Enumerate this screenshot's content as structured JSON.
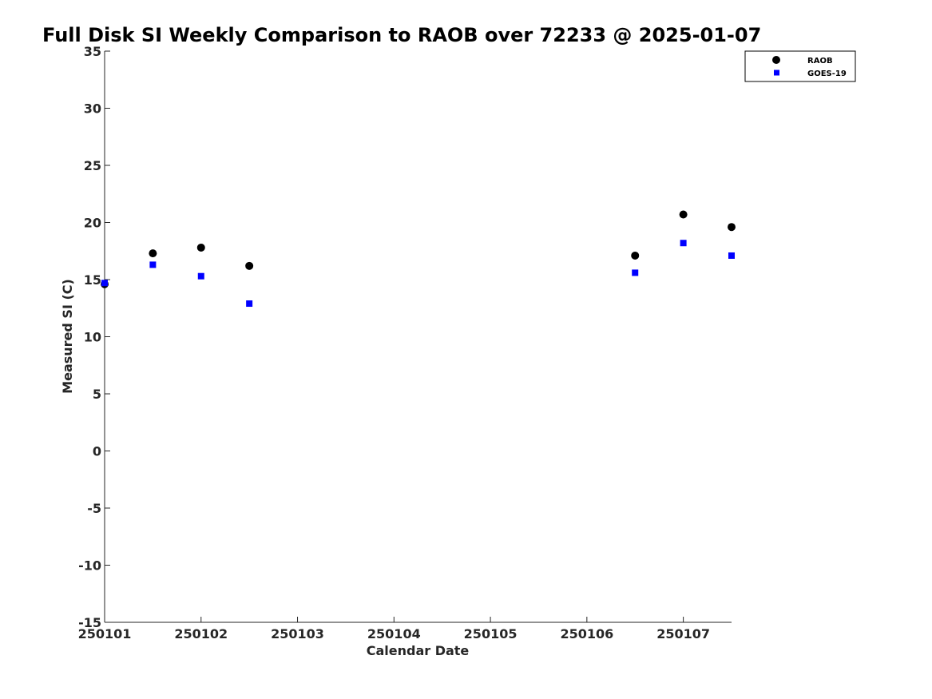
{
  "chart_data": {
    "type": "scatter",
    "title": "Full Disk SI Weekly Comparison to RAOB over 72233 @ 2025-01-07",
    "xlabel": "Calendar Date",
    "ylabel": "Measured SI (C)",
    "x_tick_labels": [
      "250101",
      "250102",
      "250103",
      "250104",
      "250105",
      "250106",
      "250107"
    ],
    "y_tick_labels": [
      "35",
      "30",
      "25",
      "20",
      "15",
      "10",
      "5",
      "0",
      "-5",
      "-10",
      "-15"
    ],
    "x_ticks": [
      1,
      2,
      3,
      4,
      5,
      6,
      7
    ],
    "ylim": [
      -15,
      35
    ],
    "xlim": [
      1,
      7.5
    ],
    "grid": false,
    "legend_position": "top-right",
    "series": [
      {
        "name": "RAOB",
        "marker": "circle",
        "color": "#000000",
        "x": [
          1,
          1.5,
          2,
          2.5,
          6.5,
          7,
          7.5
        ],
        "y": [
          14.6,
          17.3,
          17.8,
          16.2,
          17.1,
          20.7,
          19.6
        ]
      },
      {
        "name": "GOES-19",
        "marker": "square",
        "color": "#0000ff",
        "x": [
          1,
          1.5,
          2,
          2.5,
          6.5,
          7,
          7.5
        ],
        "y": [
          14.7,
          16.3,
          15.3,
          12.9,
          15.6,
          18.2,
          17.1
        ]
      }
    ]
  }
}
